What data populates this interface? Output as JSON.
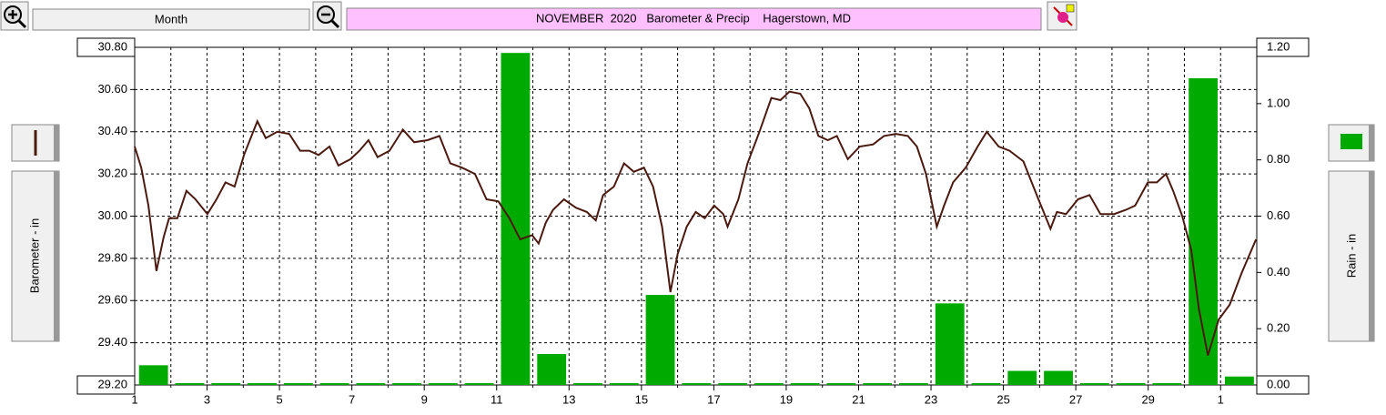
{
  "toolbar": {
    "range_button": "Month"
  },
  "chart_data": {
    "type": "combo",
    "title": "NOVEMBER  2020   Barometer & Precip    Hagerstown, MD",
    "xlim": [
      1,
      32
    ],
    "xticks": [
      1,
      3,
      5,
      7,
      9,
      11,
      13,
      15,
      17,
      19,
      21,
      23,
      25,
      27,
      29,
      {
        "value": 31,
        "label": "1"
      }
    ],
    "x_minor_ticks": [
      2,
      4,
      6,
      8,
      10,
      12,
      14,
      16,
      18,
      20,
      22,
      24,
      26,
      28,
      30
    ],
    "ylim": [
      29.2,
      30.8
    ],
    "yticks": [
      {
        "value": 29.2,
        "label": "29.20"
      },
      {
        "value": 29.4,
        "label": "29.40"
      },
      {
        "value": 29.6,
        "label": "29.60"
      },
      {
        "value": 29.8,
        "label": "29.80"
      },
      {
        "value": 30.0,
        "label": "30.00"
      },
      {
        "value": 30.2,
        "label": "30.20"
      },
      {
        "value": 30.4,
        "label": "30.40"
      },
      {
        "value": 30.6,
        "label": "30.60"
      },
      {
        "value": 30.8,
        "label": "30.80"
      }
    ],
    "y2lim": [
      0,
      1.2
    ],
    "y2ticks": [
      {
        "value": 0,
        "label": "0.00"
      },
      {
        "value": 0.2,
        "label": "0.20"
      },
      {
        "value": 0.4,
        "label": "0.40"
      },
      {
        "value": 0.6,
        "label": "0.60"
      },
      {
        "value": 0.8,
        "label": "0.80"
      },
      {
        "value": 1.0,
        "label": "1.00"
      },
      {
        "value": 1.2,
        "label": "1.20"
      }
    ],
    "grid": true,
    "series": [
      {
        "name": "Barometer - in",
        "type": "line",
        "color": "#4a1a10",
        "x": [
          1.0,
          1.18,
          1.38,
          1.6,
          1.8,
          1.95,
          2.18,
          2.43,
          2.68,
          3.01,
          3.26,
          3.51,
          3.76,
          4.02,
          4.39,
          4.62,
          4.94,
          5.27,
          5.57,
          5.82,
          6.08,
          6.38,
          6.63,
          6.96,
          7.21,
          7.46,
          7.71,
          8.04,
          8.41,
          8.72,
          9.09,
          9.42,
          9.72,
          10.04,
          10.4,
          10.72,
          11.05,
          11.35,
          11.65,
          11.98,
          12.16,
          12.36,
          12.56,
          12.86,
          13.19,
          13.49,
          13.74,
          13.94,
          14.24,
          14.52,
          14.79,
          15.07,
          15.32,
          15.57,
          15.8,
          16.0,
          16.25,
          16.5,
          16.75,
          17.01,
          17.26,
          17.38,
          17.68,
          17.93,
          18.26,
          18.59,
          18.84,
          19.09,
          19.39,
          19.64,
          19.89,
          20.15,
          20.4,
          20.7,
          21.03,
          21.4,
          21.7,
          22.03,
          22.36,
          22.61,
          22.86,
          23.16,
          23.36,
          23.61,
          23.96,
          24.29,
          24.54,
          24.87,
          25.17,
          25.55,
          25.92,
          26.3,
          26.48,
          26.73,
          27.06,
          27.38,
          27.68,
          28.06,
          28.39,
          28.64,
          28.99,
          29.24,
          29.49,
          29.69,
          29.94,
          30.19,
          30.4,
          30.65,
          30.95,
          31.25,
          31.58,
          31.98
        ],
        "values": [
          30.33,
          30.23,
          30.05,
          29.74,
          29.9,
          29.99,
          29.99,
          30.12,
          30.08,
          30.01,
          30.08,
          30.16,
          30.14,
          30.29,
          30.45,
          30.37,
          30.4,
          30.39,
          30.31,
          30.31,
          30.29,
          30.33,
          30.24,
          30.27,
          30.31,
          30.36,
          30.28,
          30.31,
          30.41,
          30.35,
          30.36,
          30.38,
          30.25,
          30.23,
          30.2,
          30.08,
          30.07,
          29.99,
          29.89,
          29.91,
          29.87,
          29.97,
          30.03,
          30.08,
          30.04,
          30.02,
          29.98,
          30.1,
          30.14,
          30.25,
          30.21,
          30.23,
          30.14,
          29.95,
          29.64,
          29.82,
          29.95,
          30.02,
          29.99,
          30.05,
          30.01,
          29.95,
          30.08,
          30.25,
          30.4,
          30.56,
          30.55,
          30.59,
          30.58,
          30.51,
          30.38,
          30.36,
          30.38,
          30.27,
          30.33,
          30.34,
          30.38,
          30.39,
          30.38,
          30.33,
          30.2,
          29.95,
          30.05,
          30.16,
          30.23,
          30.33,
          30.4,
          30.33,
          30.31,
          30.26,
          30.1,
          29.94,
          30.02,
          30.01,
          30.08,
          30.1,
          30.01,
          30.01,
          30.03,
          30.05,
          30.16,
          30.16,
          30.2,
          30.12,
          30.0,
          29.84,
          29.56,
          29.34,
          29.51,
          29.58,
          29.73,
          29.89
        ]
      },
      {
        "name": "Rain - in",
        "type": "bar",
        "axis": "y2",
        "color": "#00aa00",
        "x": [
          1,
          2,
          3,
          4,
          5,
          6,
          7,
          8,
          9,
          10,
          11,
          12,
          13,
          14,
          15,
          16,
          17,
          18,
          19,
          20,
          21,
          22,
          23,
          24,
          25,
          26,
          27,
          28,
          29,
          30,
          31
        ],
        "values": [
          0.07,
          0,
          0,
          0,
          0,
          0,
          0,
          0,
          0,
          0,
          1.18,
          0.11,
          0,
          0,
          0.32,
          0,
          0,
          0,
          0,
          0,
          0,
          0,
          0.29,
          0,
          0.05,
          0.05,
          0,
          0,
          0,
          1.09,
          0.03
        ]
      }
    ]
  }
}
